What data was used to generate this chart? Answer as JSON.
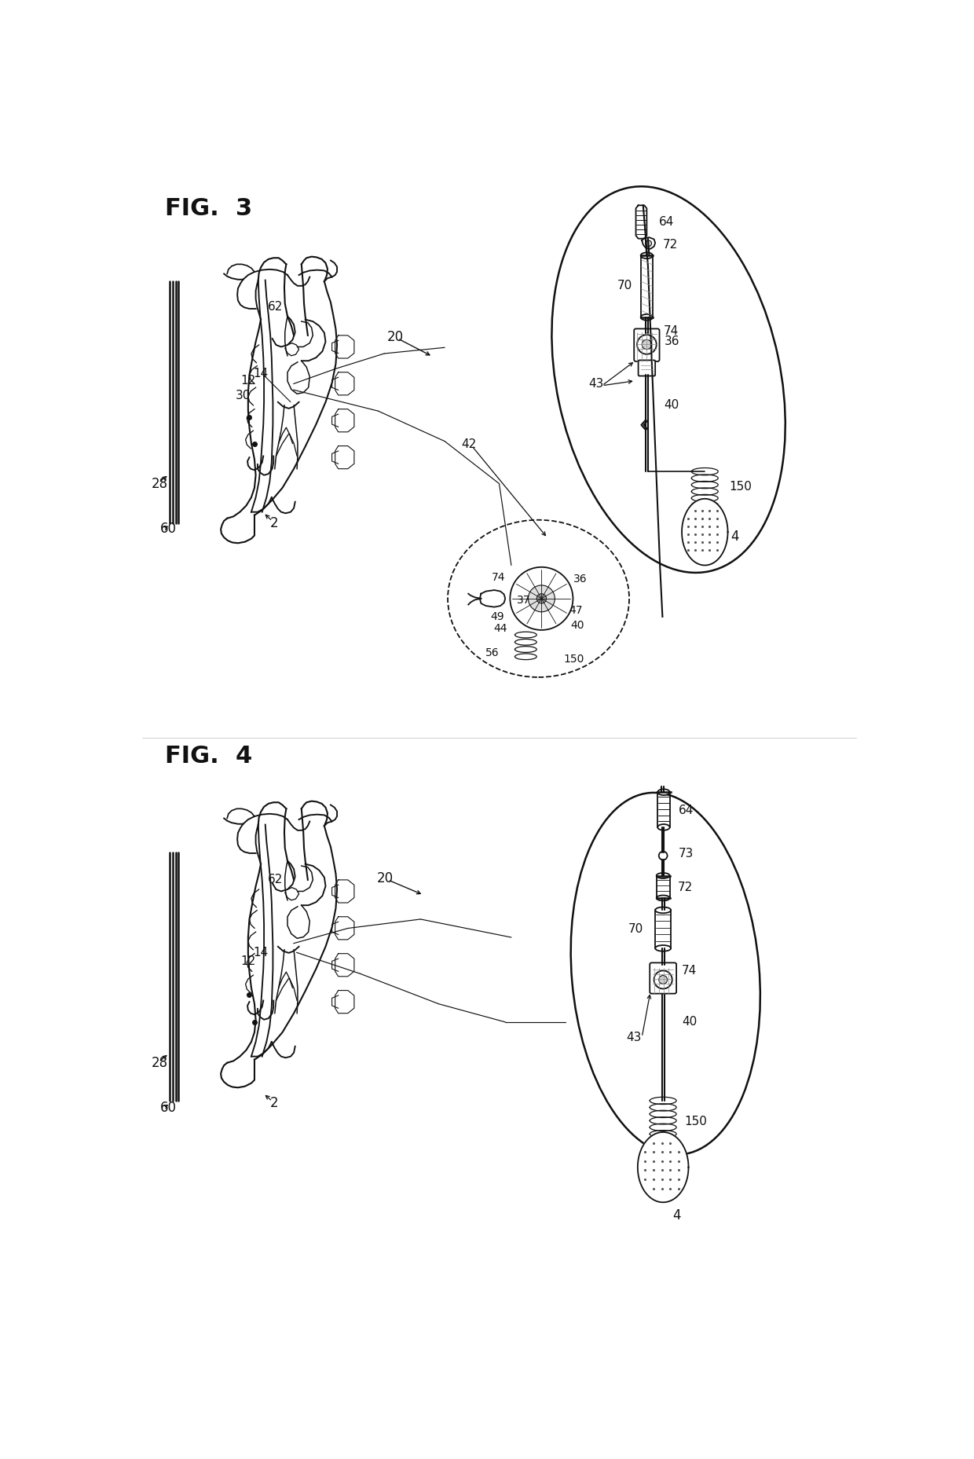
{
  "background_color": "#ffffff",
  "line_color": "#111111",
  "fig_width": 12.4,
  "fig_height": 18.57,
  "lw": 1.3,
  "lw_thick": 1.8,
  "lw_thin": 0.8
}
